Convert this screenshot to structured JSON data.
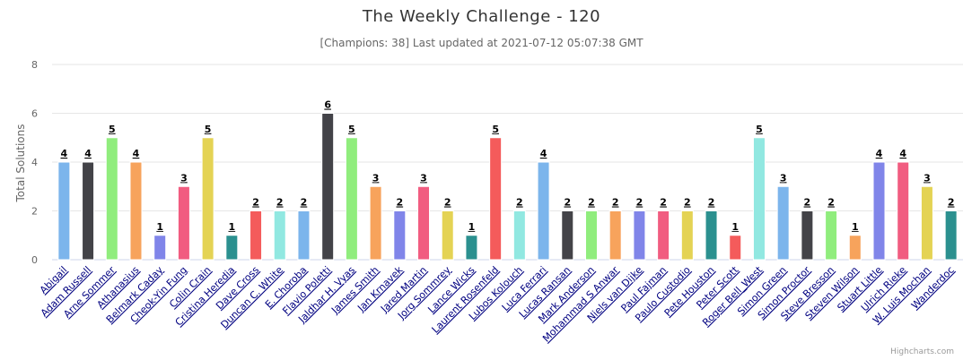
{
  "chart_data": {
    "type": "bar",
    "title": "The Weekly Challenge - 120",
    "subtitle": "[Champions: 38] Last updated at 2021-07-12 05:07:38 GMT",
    "ylabel": "Total Solutions",
    "xlabel": "",
    "ylim": [
      0,
      8
    ],
    "yticks": [
      0,
      2,
      4,
      6,
      8
    ],
    "grid": true,
    "legend": "none",
    "categories": [
      "Abigail",
      "Adam Russell",
      "Arne Sommer",
      "Athanasius",
      "Belmark Caday",
      "Cheok-Yin Fung",
      "Colin Crain",
      "Cristina Heredia",
      "Dave Cross",
      "Duncan C. White",
      "E. Choroba",
      "Flavio Poletti",
      "Jaldhar H. Vyas",
      "James Smith",
      "Jan Krnavek",
      "Jared Martin",
      "Jorg Sommrey",
      "Lance Wicks",
      "Laurent Rosenfeld",
      "Lubos Kolouch",
      "Luca Ferrari",
      "Lucas Ransan",
      "Mark Anderson",
      "Mohammad S Anwar",
      "Niels van Dijke",
      "Paul Fajman",
      "Paulo Custodio",
      "Pete Houston",
      "Peter Scott",
      "Roger Bell_West",
      "Simon Green",
      "Simon Proctor",
      "Steve Bresson",
      "Steven Wilson",
      "Stuart Little",
      "Ulrich Rieke",
      "W. Luis Mochan",
      "Wanderdoc"
    ],
    "values": [
      4,
      4,
      5,
      4,
      1,
      3,
      5,
      1,
      2,
      2,
      2,
      6,
      5,
      3,
      2,
      3,
      2,
      1,
      5,
      2,
      4,
      2,
      2,
      2,
      2,
      2,
      2,
      2,
      1,
      5,
      3,
      2,
      2,
      1,
      4,
      4,
      3,
      2
    ],
    "colors": [
      "#7cb5ec",
      "#434348",
      "#90ed7d",
      "#f7a35c",
      "#8085e9",
      "#f15c80",
      "#e4d354",
      "#2b908f",
      "#f45b5b",
      "#91e8e1"
    ]
  },
  "credits": "Highcharts.com"
}
